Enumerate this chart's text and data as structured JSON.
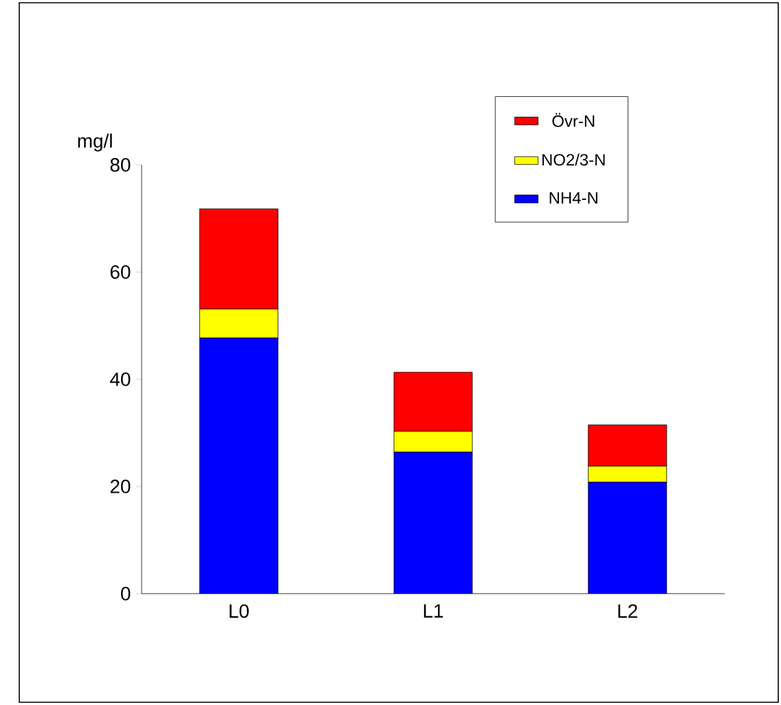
{
  "chart_data": {
    "type": "bar",
    "stacked": true,
    "ylabel": "mg/l",
    "categories": [
      "L0",
      "L1",
      "L2"
    ],
    "series": [
      {
        "name": "NH4-N",
        "color": "#0000ff",
        "values": [
          47.7,
          26.4,
          20.8
        ]
      },
      {
        "name": "NO2/3-N",
        "color": "#ffff00",
        "values": [
          5.4,
          3.9,
          3.0
        ]
      },
      {
        "name": "Övr-N",
        "color": "#ff0000",
        "values": [
          18.7,
          11.0,
          7.7
        ]
      }
    ],
    "ylim": [
      0,
      80
    ],
    "yticks": [
      0,
      20,
      40,
      60,
      80
    ],
    "legend": "top right"
  }
}
